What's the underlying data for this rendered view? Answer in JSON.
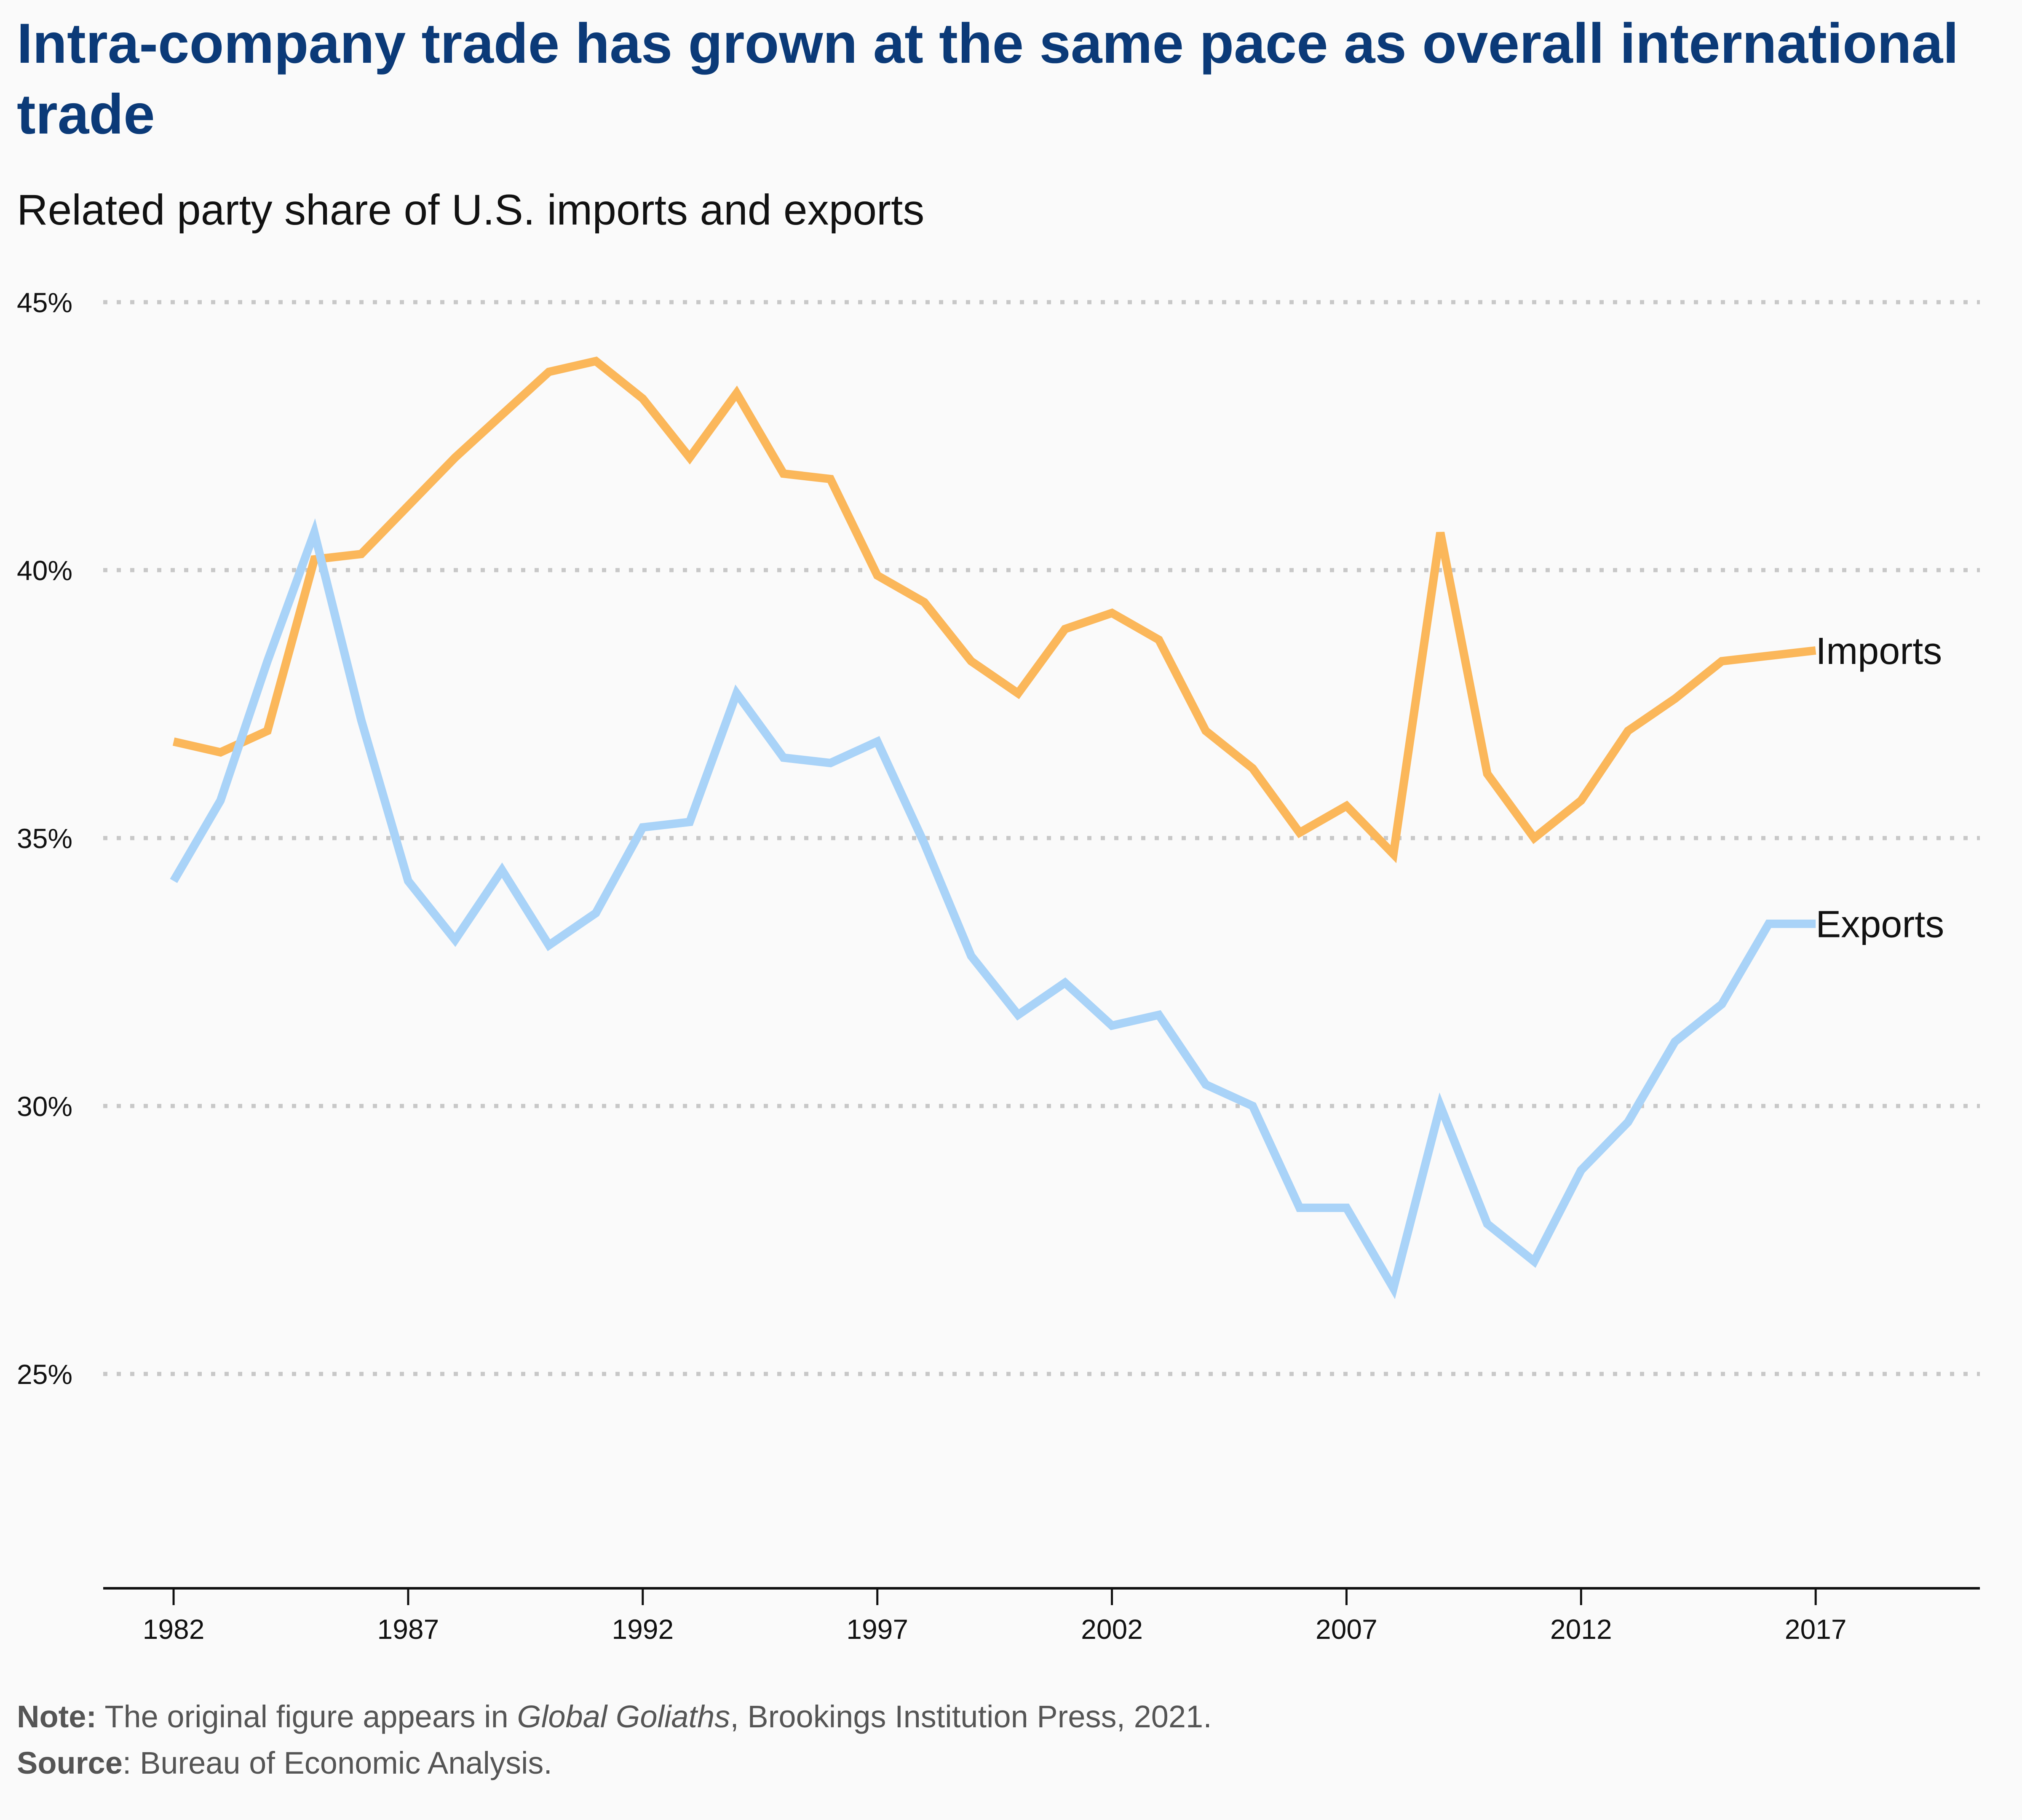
{
  "chart_data": {
    "type": "line",
    "title": "Intra-company trade has grown at the same pace as overall international trade",
    "subtitle": "Related party share of U.S. imports and exports",
    "x": [
      1982,
      1983,
      1984,
      1985,
      1986,
      1987,
      1988,
      1989,
      1990,
      1991,
      1992,
      1993,
      1994,
      1995,
      1996,
      1997,
      1998,
      1999,
      2000,
      2001,
      2002,
      2003,
      2004,
      2005,
      2006,
      2007,
      2008,
      2009,
      2010,
      2011,
      2012,
      2013,
      2014,
      2015,
      2016,
      2017
    ],
    "series": [
      {
        "name": "Imports",
        "color": "#fbb75a",
        "values": [
          36.8,
          36.6,
          37.0,
          40.2,
          40.3,
          41.2,
          42.1,
          42.9,
          43.7,
          43.9,
          43.2,
          42.1,
          43.3,
          41.8,
          41.7,
          39.9,
          39.4,
          38.3,
          37.7,
          38.9,
          39.2,
          38.7,
          37.0,
          36.3,
          35.1,
          35.6,
          34.7,
          40.7,
          36.2,
          35.0,
          35.7,
          37.0,
          37.6,
          38.3,
          38.4,
          38.5
        ]
      },
      {
        "name": "Exports",
        "color": "#a9d3f8",
        "values": [
          34.2,
          35.7,
          38.3,
          40.7,
          37.2,
          34.2,
          33.1,
          34.4,
          33.0,
          33.6,
          35.2,
          35.3,
          37.7,
          36.5,
          36.4,
          36.8,
          34.9,
          32.8,
          31.7,
          32.3,
          31.5,
          31.7,
          30.4,
          30.0,
          28.1,
          28.1,
          26.6,
          30.0,
          27.8,
          27.1,
          28.8,
          29.7,
          31.2,
          31.9,
          33.4,
          33.4
        ]
      }
    ],
    "x_ticks": [
      "1982",
      "1987",
      "1992",
      "1997",
      "2002",
      "2007",
      "2012",
      "2017"
    ],
    "y_ticks": [
      "25%",
      "30%",
      "35%",
      "40%",
      "45%"
    ],
    "y_tick_values": [
      25,
      30,
      35,
      40,
      45
    ],
    "xlim": [
      1980.5,
      2020.5
    ],
    "ylim": [
      21,
      46
    ],
    "xlabel": "",
    "ylabel": "",
    "grid": "horizontal dotted",
    "grid_color": "#c8c8c8",
    "axis_color": "#111111"
  },
  "header": {
    "title": "Intra-company trade has grown at the same pace as overall international trade",
    "subtitle": "Related party share of U.S. imports and exports"
  },
  "footer": {
    "note_label": "Note:",
    "note_pre": " The original figure appears in ",
    "note_italic": "Global Goliaths",
    "note_post": ", Brookings Institution Press, 2021.",
    "source_label": "Source",
    "source_text": ": Bureau of Economic Analysis."
  }
}
